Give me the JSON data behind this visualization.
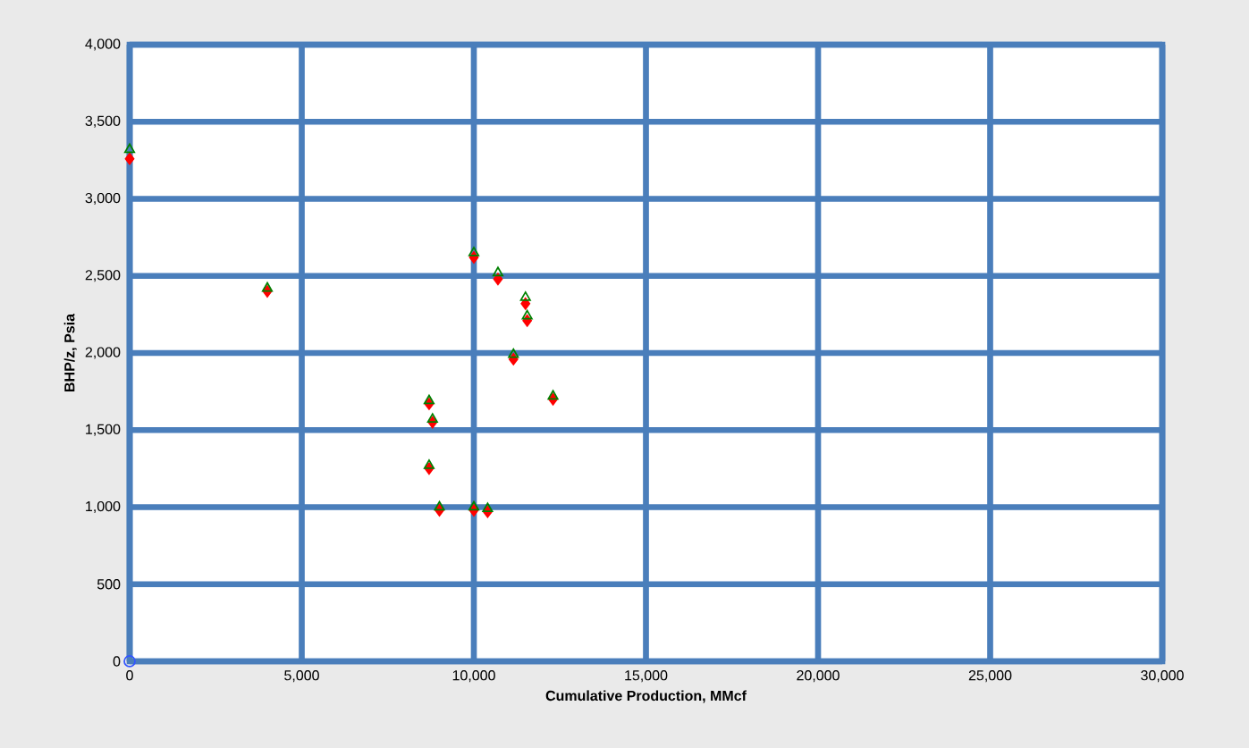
{
  "chart_data": {
    "type": "scatter",
    "xlabel": "Cumulative Production, MMcf",
    "ylabel": "BHP/z, Psia",
    "xlim": [
      0,
      30000
    ],
    "ylim": [
      0,
      4000
    ],
    "xticks": [
      0,
      {
        "value": 5000,
        "label": "5,000"
      },
      {
        "value": 10000,
        "label": "10,000"
      },
      {
        "value": 15000,
        "label": "15,000"
      },
      {
        "value": 20000,
        "label": "20,000"
      },
      {
        "value": 25000,
        "label": "25,000"
      },
      {
        "value": 30000,
        "label": "30,000"
      }
    ],
    "yticks": [
      0,
      500,
      {
        "value": 1000,
        "label": "1,000"
      },
      {
        "value": 1500,
        "label": "1,500"
      },
      {
        "value": 2000,
        "label": "2,000"
      },
      {
        "value": 2500,
        "label": "2,500"
      },
      {
        "value": 3000,
        "label": "3,000"
      },
      {
        "value": 3500,
        "label": "3,500"
      },
      {
        "value": 4000,
        "label": "4,000"
      }
    ],
    "grid": true,
    "series": [
      {
        "color": "#ff0000",
        "marker": "diamond",
        "x": [
          0,
          4000,
          10000,
          10700,
          11500,
          11550,
          11150,
          12300,
          8700,
          8800,
          8700,
          9000,
          10000,
          10400
        ],
        "values": [
          3260,
          2400,
          2620,
          2480,
          2320,
          2210,
          1960,
          1700,
          1670,
          1550,
          1250,
          980,
          980,
          970
        ]
      },
      {
        "color": "#008000",
        "marker": "triangle",
        "x": [
          0,
          4000,
          10000,
          10700,
          11500,
          11550,
          11150,
          12300,
          8700,
          8800,
          8700,
          9000,
          10000,
          10400
        ],
        "values": [
          3320,
          2420,
          2650,
          2520,
          2360,
          2240,
          1990,
          1720,
          1690,
          1570,
          1270,
          1000,
          1000,
          990
        ]
      },
      {
        "color": "#3355ff",
        "marker": "circle",
        "x": [
          0
        ],
        "values": [
          0
        ]
      }
    ]
  }
}
